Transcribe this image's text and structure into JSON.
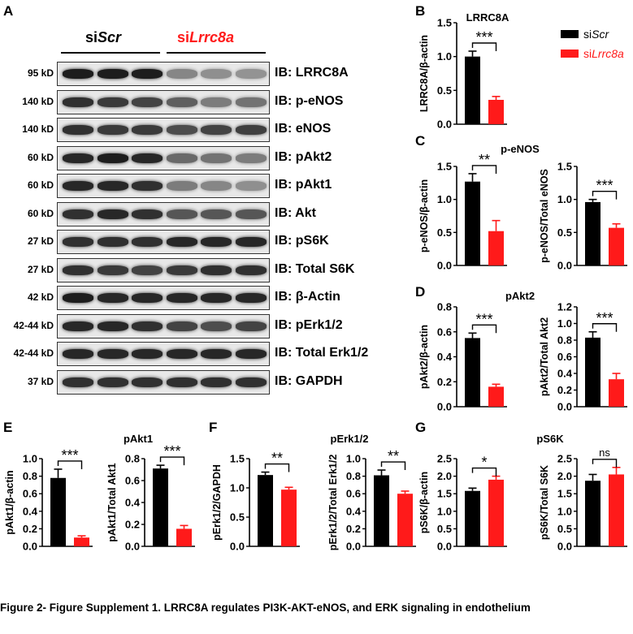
{
  "colors": {
    "scr": "#000000",
    "lrrc": "#ff1a1a"
  },
  "labels": {
    "A": "A",
    "B": "B",
    "C": "C",
    "D": "D",
    "E": "E",
    "F": "F",
    "G": "G"
  },
  "groups": {
    "scr_prefix": "si",
    "scr_italic": "Scr",
    "lrrc_prefix": "si",
    "lrrc_italic": "Lrrc8a"
  },
  "blots": [
    {
      "mw": "95 kD",
      "ib": "IB: LRRC8A",
      "scr": [
        0.9,
        0.9,
        0.9
      ],
      "lrrc": [
        0.35,
        0.3,
        0.28
      ]
    },
    {
      "mw": "140 kD",
      "ib": "IB: p-eNOS",
      "scr": [
        0.8,
        0.75,
        0.7
      ],
      "lrrc": [
        0.55,
        0.4,
        0.45
      ]
    },
    {
      "mw": "140 kD",
      "ib": "IB: eNOS",
      "scr": [
        0.8,
        0.75,
        0.75
      ],
      "lrrc": [
        0.65,
        0.7,
        0.72
      ]
    },
    {
      "mw": "60 kD",
      "ib": "IB: pAkt2",
      "scr": [
        0.85,
        0.9,
        0.85
      ],
      "lrrc": [
        0.5,
        0.45,
        0.4
      ]
    },
    {
      "mw": "60 kD",
      "ib": "IB: pAkt1",
      "scr": [
        0.85,
        0.85,
        0.8
      ],
      "lrrc": [
        0.4,
        0.35,
        0.3
      ]
    },
    {
      "mw": "60 kD",
      "ib": "IB: Akt",
      "scr": [
        0.8,
        0.85,
        0.8
      ],
      "lrrc": [
        0.6,
        0.6,
        0.6
      ]
    },
    {
      "mw": "27 kD",
      "ib": "IB: pS6K",
      "scr": [
        0.8,
        0.8,
        0.8
      ],
      "lrrc": [
        0.85,
        0.85,
        0.85
      ]
    },
    {
      "mw": "27 kD",
      "ib": "IB: Total S6K",
      "scr": [
        0.8,
        0.75,
        0.7
      ],
      "lrrc": [
        0.75,
        0.8,
        0.8
      ]
    },
    {
      "mw": "42 kD",
      "ib": "IB: β-Actin",
      "scr": [
        0.9,
        0.85,
        0.85
      ],
      "lrrc": [
        0.85,
        0.85,
        0.85
      ]
    },
    {
      "mw": "42-44 kD",
      "ib": "IB: pErk1/2",
      "scr": [
        0.85,
        0.85,
        0.8
      ],
      "lrrc": [
        0.7,
        0.65,
        0.7
      ]
    },
    {
      "mw": "42-44 kD",
      "ib": "IB: Total Erk1/2",
      "scr": [
        0.85,
        0.85,
        0.85
      ],
      "lrrc": [
        0.85,
        0.85,
        0.85
      ]
    },
    {
      "mw": "37 kD",
      "ib": "IB: GAPDH",
      "scr": [
        0.8,
        0.8,
        0.8
      ],
      "lrrc": [
        0.8,
        0.8,
        0.8
      ]
    }
  ],
  "legend": {
    "scr_prefix": "si",
    "scr_italic": "Scr",
    "lrrc_prefix": "si",
    "lrrc_italic": "Lrrc8a"
  },
  "caption": "Figure 2- Figure Supplement 1. LRRC8A regulates PI3K-AKT-eNOS, and ERK signaling in endothelium",
  "chart_data": [
    {
      "panel": "B",
      "type": "bar",
      "title": "LRRC8A",
      "ylabel": "LRRC8A/β-actin",
      "ylim": [
        0,
        1.5
      ],
      "ticks": [
        "0.0",
        "0.5",
        "1.0",
        "1.5"
      ],
      "values": [
        1.0,
        0.36
      ],
      "errors": [
        0.08,
        0.05
      ],
      "sig": "***"
    },
    {
      "panel": "C",
      "type": "bar",
      "title": "p-eNOS",
      "ylabel": "p-eNOS/β-actin",
      "ylim": [
        0,
        1.5
      ],
      "ticks": [
        "0.0",
        "0.5",
        "1.0",
        "1.5"
      ],
      "values": [
        1.27,
        0.52
      ],
      "errors": [
        0.12,
        0.16
      ],
      "sig": "**"
    },
    {
      "panel": "C",
      "type": "bar",
      "title": "",
      "ylabel": "p-eNOS/Total eNOS",
      "ylim": [
        0,
        1.5
      ],
      "ticks": [
        "0.0",
        "0.5",
        "1.0",
        "1.5"
      ],
      "values": [
        0.96,
        0.57
      ],
      "errors": [
        0.04,
        0.06
      ],
      "sig": "***"
    },
    {
      "panel": "D",
      "type": "bar",
      "title": "pAkt2",
      "ylabel": "pAkt2/β-actin",
      "ylim": [
        0,
        0.8
      ],
      "ticks": [
        "0.0",
        "0.2",
        "0.4",
        "0.6",
        "0.8"
      ],
      "values": [
        0.55,
        0.16
      ],
      "errors": [
        0.04,
        0.02
      ],
      "sig": "***"
    },
    {
      "panel": "D",
      "type": "bar",
      "title": "",
      "ylabel": "pAkt2/Total Akt2",
      "ylim": [
        0,
        1.2
      ],
      "ticks": [
        "0.0",
        "0.2",
        "0.4",
        "0.6",
        "0.8",
        "1.0",
        "1.2"
      ],
      "values": [
        0.83,
        0.33
      ],
      "errors": [
        0.07,
        0.07
      ],
      "sig": "***"
    },
    {
      "panel": "E",
      "type": "bar",
      "title": "pAkt1",
      "ylabel": "pAkt1/β-actin",
      "ylim": [
        0,
        1.0
      ],
      "ticks": [
        "0.0",
        "0.2",
        "0.4",
        "0.6",
        "0.8",
        "1.0"
      ],
      "values": [
        0.78,
        0.1
      ],
      "errors": [
        0.1,
        0.02
      ],
      "sig": "***"
    },
    {
      "panel": "E",
      "type": "bar",
      "title": "",
      "ylabel": "pAkt1/Total Akt1",
      "ylim": [
        0,
        0.8
      ],
      "ticks": [
        "0.0",
        "0.2",
        "0.4",
        "0.6",
        "0.8"
      ],
      "values": [
        0.71,
        0.16
      ],
      "errors": [
        0.03,
        0.03
      ],
      "sig": "***"
    },
    {
      "panel": "F",
      "type": "bar",
      "title": "pErk1/2",
      "ylabel": "pErk1/2/GAPDH",
      "ylim": [
        0,
        1.5
      ],
      "ticks": [
        "0.0",
        "0.5",
        "1.0",
        "1.5"
      ],
      "values": [
        1.22,
        0.97
      ],
      "errors": [
        0.05,
        0.04
      ],
      "sig": "**"
    },
    {
      "panel": "F",
      "type": "bar",
      "title": "",
      "ylabel": "pErk1/2/Total Erk1/2",
      "ylim": [
        0,
        1.0
      ],
      "ticks": [
        "0.0",
        "0.2",
        "0.4",
        "0.6",
        "0.8",
        "1.0"
      ],
      "values": [
        0.81,
        0.6
      ],
      "errors": [
        0.06,
        0.03
      ],
      "sig": "**"
    },
    {
      "panel": "G",
      "type": "bar",
      "title": "pS6K",
      "ylabel": "pS6K/β-actin",
      "ylim": [
        0,
        2.5
      ],
      "ticks": [
        "0.0",
        "0.5",
        "1.0",
        "1.5",
        "2.0",
        "2.5"
      ],
      "values": [
        1.58,
        1.9
      ],
      "errors": [
        0.08,
        0.1
      ],
      "sig": "*"
    },
    {
      "panel": "G",
      "type": "bar",
      "title": "",
      "ylabel": "pS6K/Total S6K",
      "ylim": [
        0,
        2.5
      ],
      "ticks": [
        "0.0",
        "0.5",
        "1.0",
        "1.5",
        "2.0",
        "2.5"
      ],
      "values": [
        1.87,
        2.05
      ],
      "errors": [
        0.18,
        0.2
      ],
      "sig": "ns"
    }
  ]
}
